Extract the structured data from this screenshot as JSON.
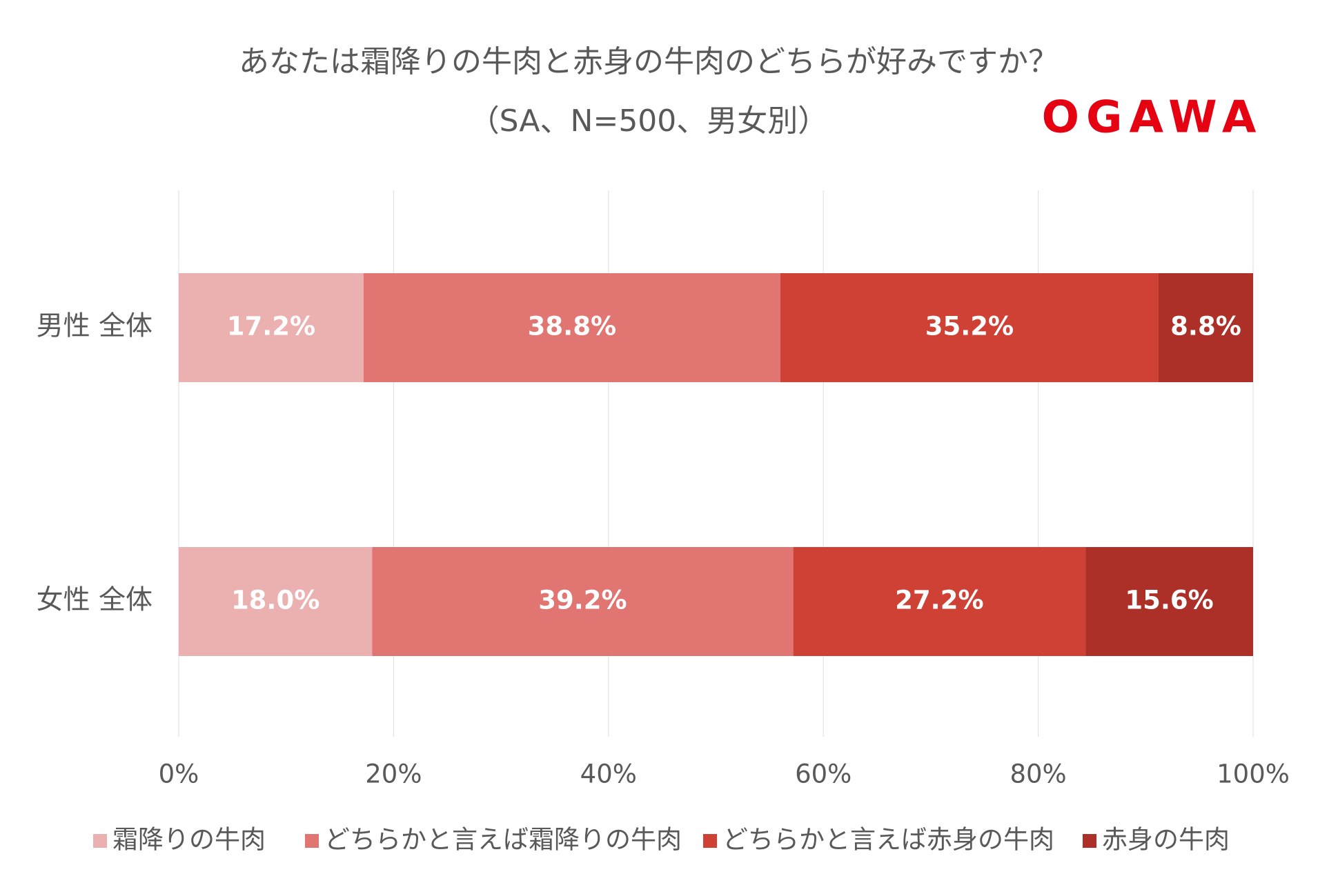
{
  "chart_data": {
    "type": "stacked-barh",
    "title": "あなたは霜降りの牛肉と赤身の牛肉のどちらが好みですか？",
    "subtitle": "（SA、N=500、男女別）",
    "logo": "OGAWA",
    "categories": [
      "男性 全体",
      "女性 全体"
    ],
    "series": [
      {
        "name": "霜降りの牛肉",
        "color": "#ebb1b0",
        "values": [
          17.2,
          18.0
        ],
        "value_labels": [
          "17.2%",
          "18.0%"
        ]
      },
      {
        "name": "どちらかと言えば霜降りの牛肉",
        "color": "#e07572",
        "values": [
          38.8,
          39.2
        ],
        "value_labels": [
          "38.8%",
          "39.2%"
        ]
      },
      {
        "name": "どちらかと言えば赤身の牛肉",
        "color": "#cf4134",
        "values": [
          35.2,
          27.2
        ],
        "value_labels": [
          "35.2%",
          "27.2%"
        ]
      },
      {
        "name": "赤身の牛肉",
        "color": "#ad3028",
        "values": [
          8.8,
          15.6
        ],
        "value_labels": [
          "8.8%",
          "15.6%"
        ]
      }
    ],
    "xlim": [
      0,
      100
    ],
    "xticks": [
      {
        "value": 0,
        "label": "0%"
      },
      {
        "value": 20,
        "label": "20%"
      },
      {
        "value": 40,
        "label": "40%"
      },
      {
        "value": 60,
        "label": "60%"
      },
      {
        "value": 80,
        "label": "80%"
      },
      {
        "value": 100,
        "label": "100%"
      }
    ],
    "grid": true,
    "legend": "bottom"
  }
}
